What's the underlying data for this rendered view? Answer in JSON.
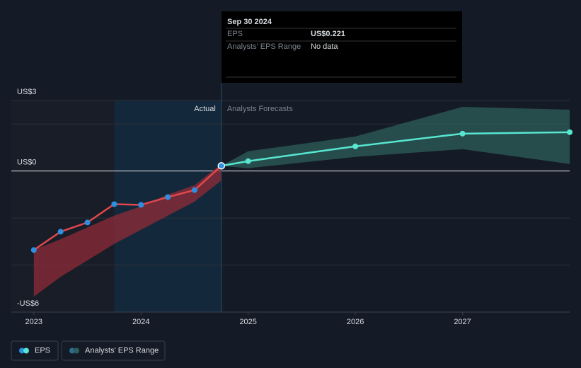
{
  "chart_data": {
    "type": "line",
    "xlim": [
      2022.79,
      2028
    ],
    "xticks": [
      2023,
      2024,
      2025,
      2026,
      2027
    ],
    "ylim": [
      -6,
      3
    ],
    "yticks": [
      {
        "value": 3,
        "label": "US$3"
      },
      {
        "value": 0,
        "label": "US$0"
      },
      {
        "value": -6,
        "label": "-US$6"
      }
    ],
    "minor_gridlines": [
      2,
      -2,
      -4
    ],
    "divider_x": 2024.75,
    "divider_labels": {
      "left": "Actual",
      "right": "Analysts Forecasts"
    },
    "series": [
      {
        "name": "EPS",
        "color": "#58e6d0",
        "actual_color": "#e0474c",
        "marker_color": "#2d8fe0",
        "x": [
          2023,
          2023.25,
          2023.5,
          2023.75,
          2024,
          2024.25,
          2024.5,
          2024.75,
          2025,
          2026,
          2027,
          2028
        ],
        "values": [
          -3.36,
          -2.58,
          -2.19,
          -1.41,
          -1.44,
          -1.11,
          -0.81,
          0.221,
          0.42,
          1.05,
          1.59,
          1.65
        ]
      }
    ],
    "range": {
      "name": "Analysts' EPS Range",
      "color": "#2c5f5a",
      "actual_color": "#8f2b38",
      "past": {
        "x": [
          2023,
          2023.25,
          2023.5,
          2023.75,
          2024,
          2024.25,
          2024.5,
          2024.75
        ],
        "low": [
          -5.34,
          -4.5,
          -3.8,
          -3.1,
          -2.5,
          -1.9,
          -1.3,
          -0.4
        ],
        "high": [
          -3.36,
          -2.9,
          -2.4,
          -1.9,
          -1.5,
          -1.0,
          -0.6,
          0.3
        ]
      },
      "forecast": {
        "x": [
          2024.75,
          2025,
          2026,
          2027,
          2028
        ],
        "low": [
          0.221,
          0.12,
          0.6,
          0.93,
          0.3
        ],
        "high": [
          0.221,
          0.84,
          1.47,
          2.73,
          2.61
        ]
      }
    },
    "tooltip": {
      "date": "Sep 30 2024",
      "rows": [
        [
          "EPS",
          "US$0.221"
        ],
        [
          "Analysts' EPS Range",
          "No data"
        ]
      ]
    }
  }
}
